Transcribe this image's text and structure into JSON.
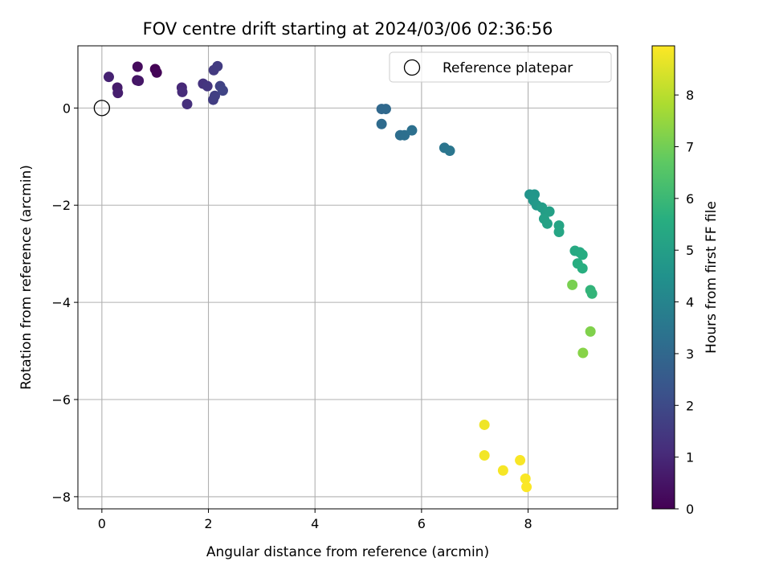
{
  "chart_data": {
    "type": "scatter",
    "title": "FOV centre drift starting at 2024/03/06 02:36:56",
    "xlabel": "Angular distance from reference (arcmin)",
    "ylabel": "Rotation from reference (arcmin)",
    "xlim": [
      -0.45,
      9.68
    ],
    "ylim": [
      -8.25,
      1.28
    ],
    "xticks": [
      0,
      2,
      4,
      6,
      8
    ],
    "yticks": [
      0,
      -2,
      -4,
      -6,
      -8
    ],
    "x_tick_labels": [
      "0",
      "2",
      "4",
      "6",
      "8"
    ],
    "y_tick_labels": [
      "0",
      "−2",
      "−4",
      "−6",
      "−8"
    ],
    "grid": true,
    "legend": {
      "placement": "top-right",
      "entries": [
        {
          "label": "Reference platepar",
          "marker": "open-circle",
          "x": 0,
          "y": 0
        }
      ]
    },
    "colorbar": {
      "label": "Hours from first FF file",
      "colormap": "viridis",
      "range": [
        0,
        8.95
      ],
      "ticks": [
        0,
        1,
        2,
        3,
        4,
        5,
        6,
        7,
        8
      ],
      "tick_labels": [
        "0",
        "1",
        "2",
        "3",
        "4",
        "5",
        "6",
        "7",
        "8"
      ]
    },
    "series": [
      {
        "value_key": "hours_from_first_ff",
        "points": [
          {
            "x": 1.0,
            "y": 0.8,
            "c": 0.0
          },
          {
            "x": 1.03,
            "y": 0.73,
            "c": 0.1
          },
          {
            "x": 0.67,
            "y": 0.85,
            "c": 0.25
          },
          {
            "x": 0.66,
            "y": 0.57,
            "c": 0.4
          },
          {
            "x": 0.69,
            "y": 0.56,
            "c": 0.55
          },
          {
            "x": 0.29,
            "y": 0.42,
            "c": 0.65
          },
          {
            "x": 0.3,
            "y": 0.31,
            "c": 0.75
          },
          {
            "x": 0.13,
            "y": 0.64,
            "c": 0.85
          },
          {
            "x": 1.5,
            "y": 0.42,
            "c": 1.0
          },
          {
            "x": 1.51,
            "y": 0.33,
            "c": 1.1
          },
          {
            "x": 1.6,
            "y": 0.08,
            "c": 1.2
          },
          {
            "x": 1.9,
            "y": 0.5,
            "c": 1.3
          },
          {
            "x": 1.98,
            "y": 0.45,
            "c": 1.4
          },
          {
            "x": 2.1,
            "y": 0.78,
            "c": 1.5
          },
          {
            "x": 2.17,
            "y": 0.86,
            "c": 1.55
          },
          {
            "x": 2.09,
            "y": 0.17,
            "c": 1.6
          },
          {
            "x": 2.12,
            "y": 0.25,
            "c": 1.65
          },
          {
            "x": 2.22,
            "y": 0.45,
            "c": 1.75
          },
          {
            "x": 2.27,
            "y": 0.36,
            "c": 1.8
          },
          {
            "x": 5.25,
            "y": -0.02,
            "c": 3.0
          },
          {
            "x": 5.33,
            "y": -0.02,
            "c": 3.05
          },
          {
            "x": 5.25,
            "y": -0.33,
            "c": 3.1
          },
          {
            "x": 5.6,
            "y": -0.56,
            "c": 3.2
          },
          {
            "x": 5.68,
            "y": -0.56,
            "c": 3.25
          },
          {
            "x": 5.82,
            "y": -0.46,
            "c": 3.3
          },
          {
            "x": 6.43,
            "y": -0.82,
            "c": 3.45
          },
          {
            "x": 6.53,
            "y": -0.88,
            "c": 3.5
          },
          {
            "x": 8.03,
            "y": -1.78,
            "c": 4.6
          },
          {
            "x": 8.12,
            "y": -1.78,
            "c": 4.65
          },
          {
            "x": 8.1,
            "y": -1.9,
            "c": 4.7
          },
          {
            "x": 8.16,
            "y": -2.0,
            "c": 4.8
          },
          {
            "x": 8.26,
            "y": -2.05,
            "c": 4.9
          },
          {
            "x": 8.33,
            "y": -2.15,
            "c": 4.95
          },
          {
            "x": 8.4,
            "y": -2.13,
            "c": 5.0
          },
          {
            "x": 8.3,
            "y": -2.28,
            "c": 5.05
          },
          {
            "x": 8.36,
            "y": -2.38,
            "c": 5.1
          },
          {
            "x": 8.58,
            "y": -2.42,
            "c": 5.2
          },
          {
            "x": 8.58,
            "y": -2.55,
            "c": 5.25
          },
          {
            "x": 8.88,
            "y": -2.94,
            "c": 5.4
          },
          {
            "x": 8.97,
            "y": -2.97,
            "c": 5.45
          },
          {
            "x": 9.02,
            "y": -3.02,
            "c": 5.5
          },
          {
            "x": 8.93,
            "y": -3.2,
            "c": 5.55
          },
          {
            "x": 9.02,
            "y": -3.3,
            "c": 5.6
          },
          {
            "x": 9.17,
            "y": -3.75,
            "c": 5.8
          },
          {
            "x": 9.2,
            "y": -3.82,
            "c": 5.85
          },
          {
            "x": 8.83,
            "y": -3.64,
            "c": 7.1
          },
          {
            "x": 9.17,
            "y": -4.6,
            "c": 7.2
          },
          {
            "x": 9.03,
            "y": -5.04,
            "c": 7.3
          },
          {
            "x": 7.18,
            "y": -6.52,
            "c": 8.75
          },
          {
            "x": 7.18,
            "y": -7.15,
            "c": 8.8
          },
          {
            "x": 7.53,
            "y": -7.46,
            "c": 8.85
          },
          {
            "x": 7.85,
            "y": -7.25,
            "c": 8.88
          },
          {
            "x": 7.95,
            "y": -7.63,
            "c": 8.9
          },
          {
            "x": 7.97,
            "y": -7.8,
            "c": 8.92
          }
        ]
      }
    ]
  }
}
